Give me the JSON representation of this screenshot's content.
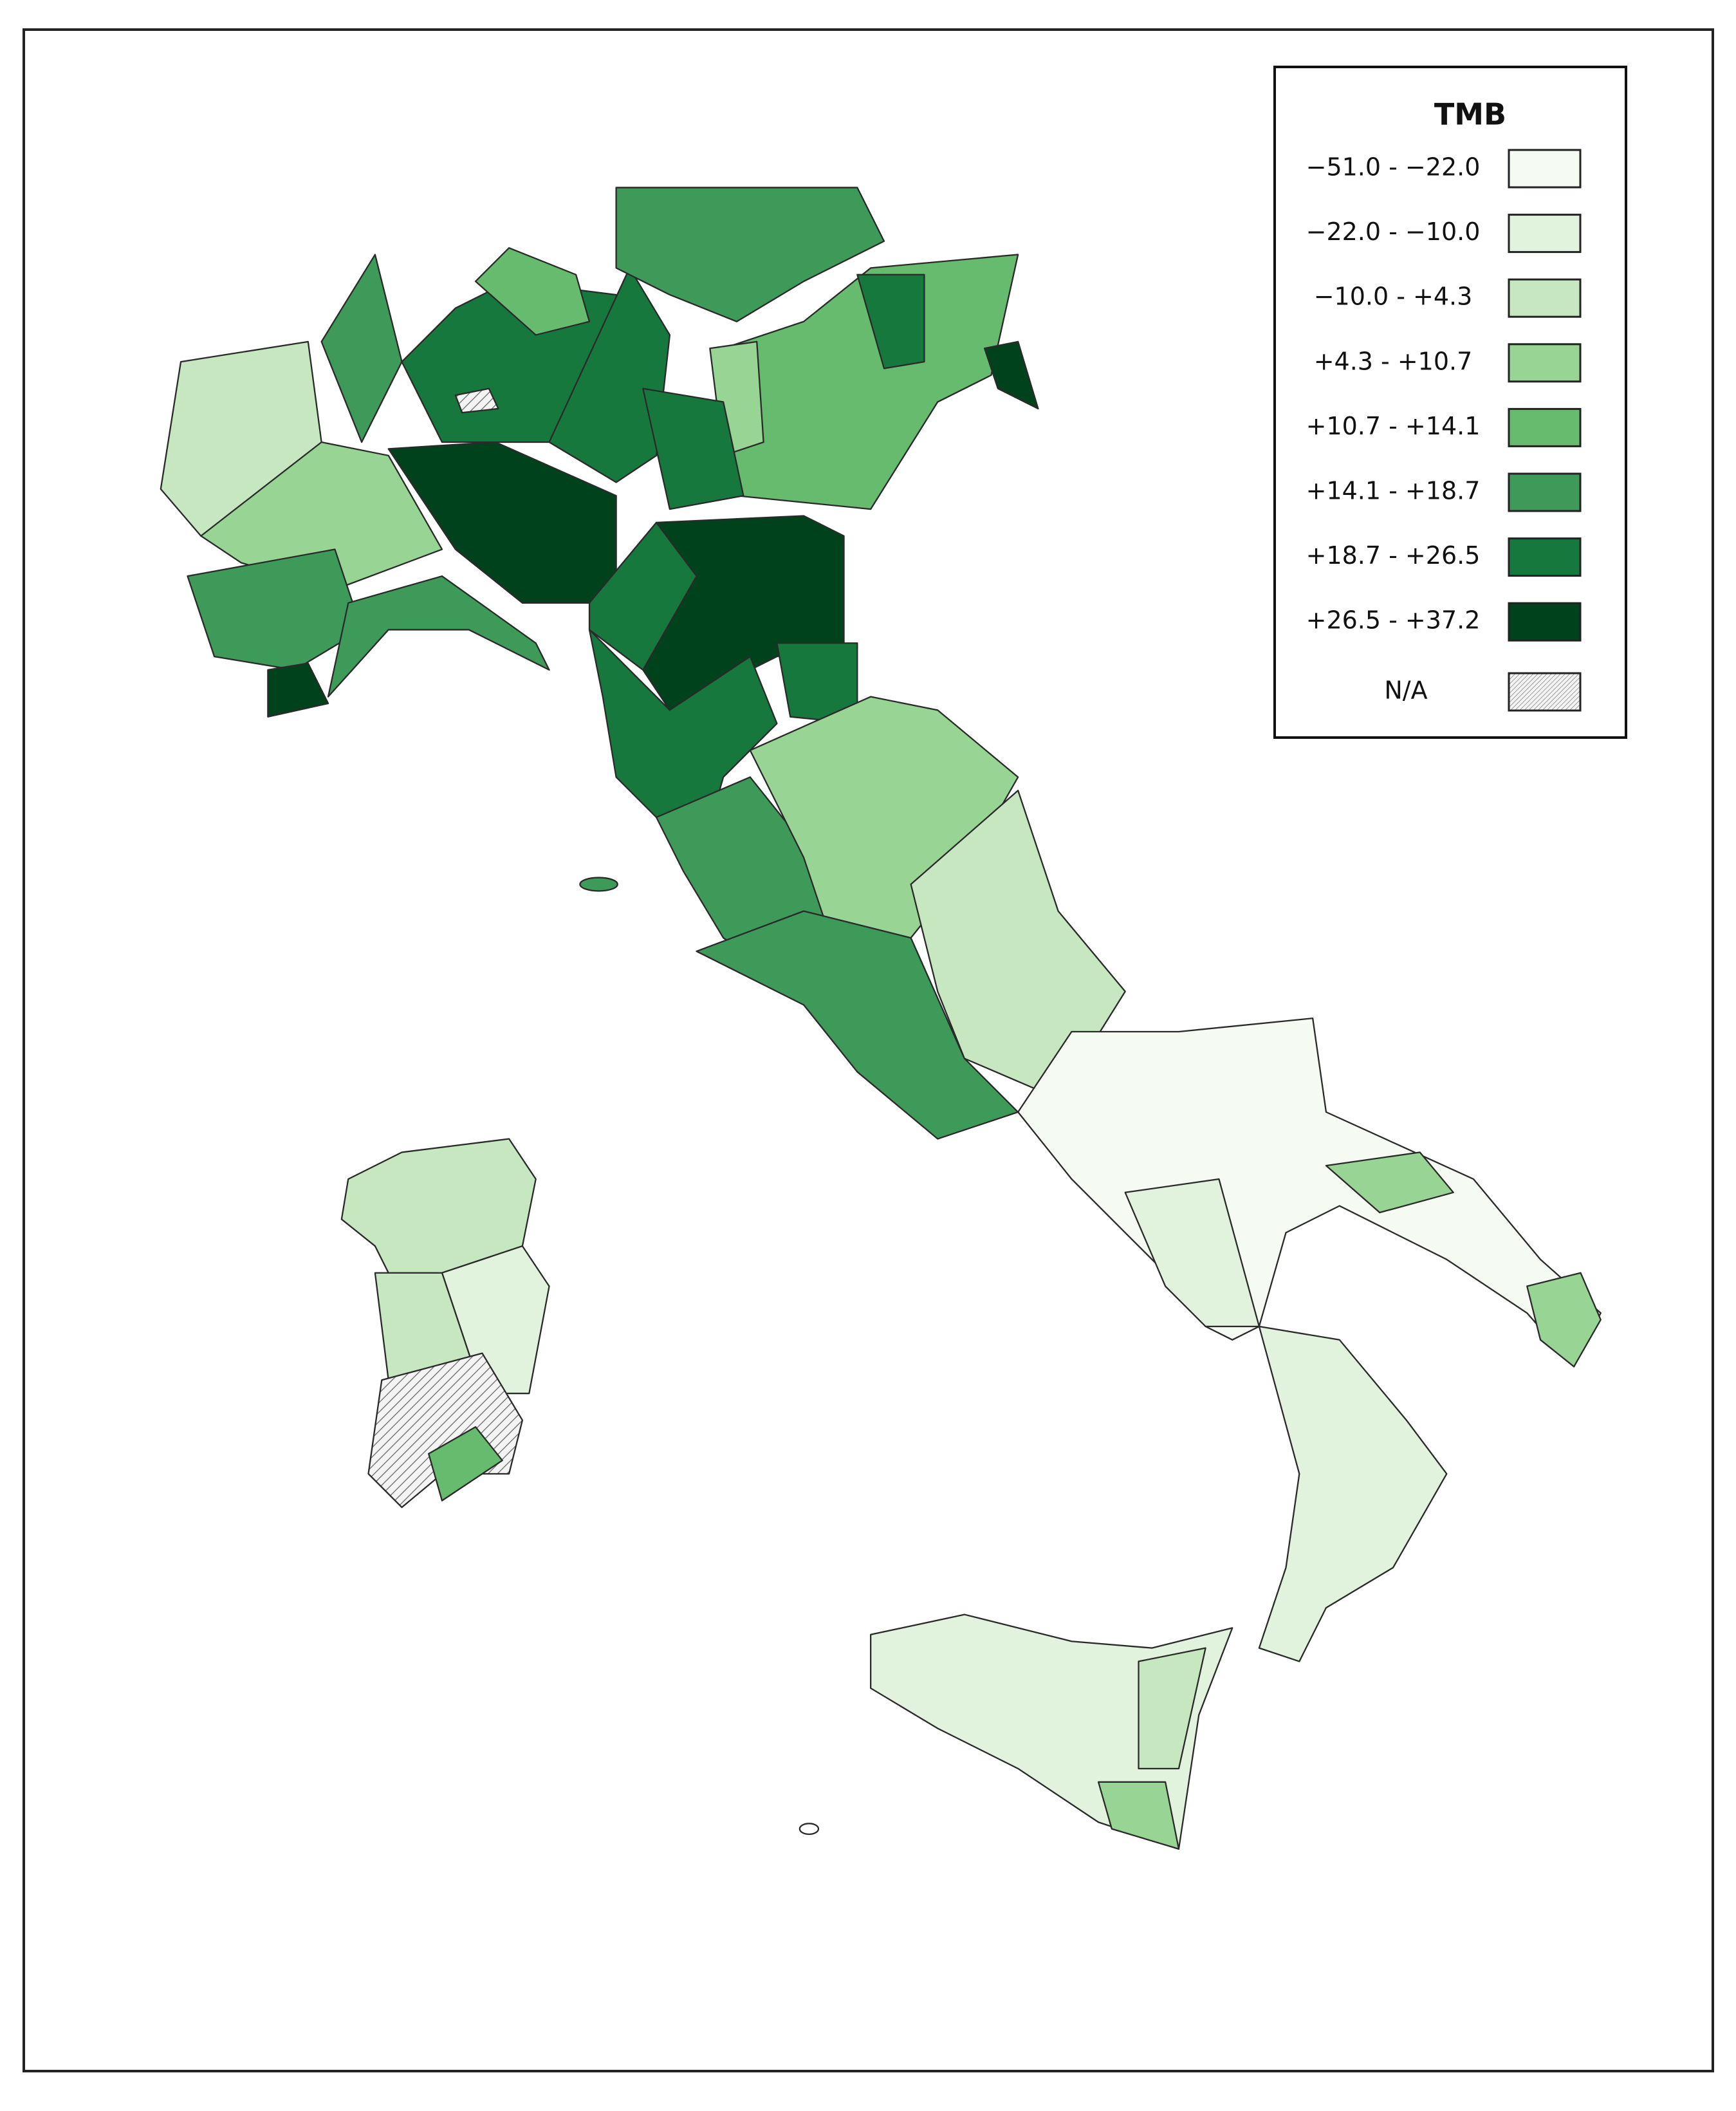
{
  "legend": {
    "title": "TMB",
    "items": [
      {
        "label": "−51.0 - −22.0",
        "color": "#f5fbf2"
      },
      {
        "label": "−22.0 - −10.0",
        "color": "#e2f3dd"
      },
      {
        "label": "−10.0 - +4.3",
        "color": "#c6e7c0"
      },
      {
        "label": "+4.3 - +10.7",
        "color": "#98d594"
      },
      {
        "label": "+10.7 - +14.1",
        "color": "#66bb6e"
      },
      {
        "label": "+14.1 - +18.7",
        "color": "#3d9a58"
      },
      {
        "label": "+18.7 - +26.5",
        "color": "#17783e"
      },
      {
        "label": "+26.5 - +37.2",
        "color": "#00421c"
      }
    ],
    "na": {
      "label": "N/A"
    }
  }
}
